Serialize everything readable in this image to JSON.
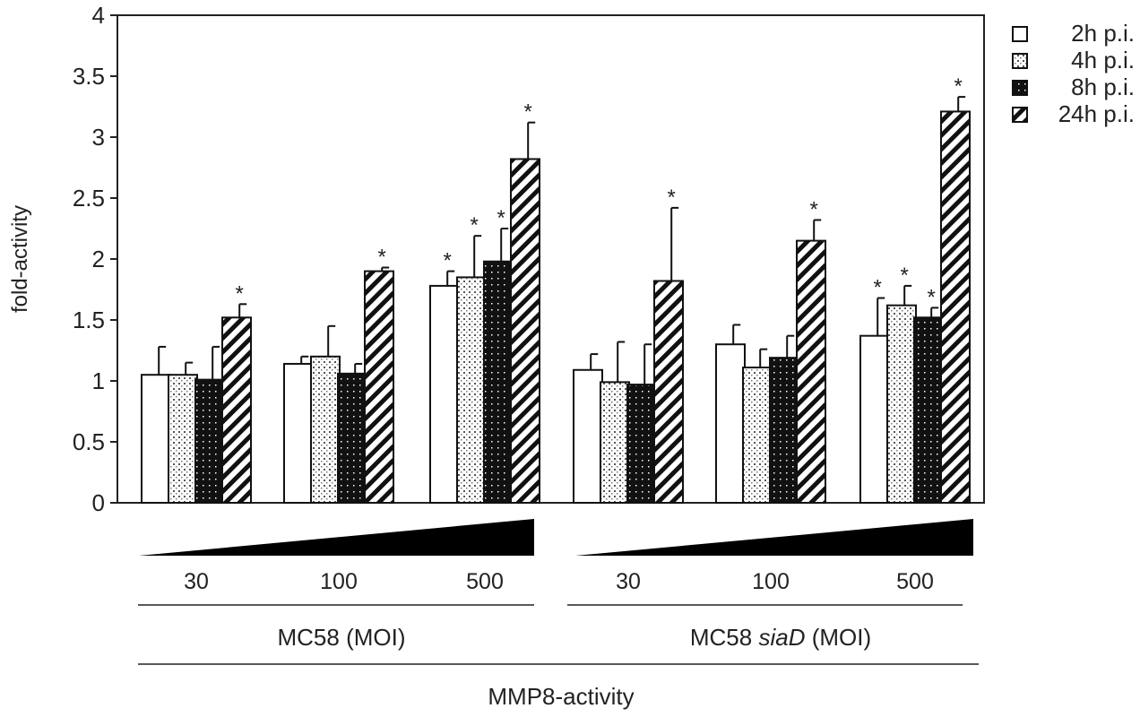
{
  "chart_data": {
    "type": "bar",
    "ylabel": "fold-activity",
    "xlabel": "MMP8-activity",
    "ylim": [
      0,
      4
    ],
    "yticks": [
      "0",
      "0.5",
      "1",
      "1.5",
      "2",
      "2.5",
      "3",
      "3.5",
      "4"
    ],
    "legend_position": "top-right",
    "groups": [
      {
        "label": "MC58 (MOI)",
        "label_pre": "MC58 ",
        "label_italic": "",
        "label_post": "(MOI)",
        "categories": [
          "30",
          "100",
          "500"
        ]
      },
      {
        "label": "MC58 siaD (MOI)",
        "label_pre": "MC58 ",
        "label_italic": "siaD",
        "label_post": " (MOI)",
        "categories": [
          "30",
          "100",
          "500"
        ]
      }
    ],
    "series": [
      {
        "name": "2h p.i.",
        "pattern": "open",
        "values": [
          1.05,
          1.14,
          1.78,
          1.09,
          1.3,
          1.37
        ],
        "errors": [
          0.23,
          0.06,
          0.12,
          0.13,
          0.16,
          0.31
        ],
        "significant": [
          false,
          false,
          true,
          false,
          false,
          true
        ]
      },
      {
        "name": "4h p.i.",
        "pattern": "light-dots",
        "values": [
          1.05,
          1.2,
          1.85,
          0.99,
          1.11,
          1.62
        ],
        "errors": [
          0.1,
          0.25,
          0.34,
          0.33,
          0.15,
          0.16
        ],
        "significant": [
          false,
          false,
          true,
          false,
          false,
          true
        ]
      },
      {
        "name": "8h p.i.",
        "pattern": "dark-dots",
        "values": [
          1.01,
          1.06,
          1.98,
          0.97,
          1.19,
          1.52
        ],
        "errors": [
          0.27,
          0.08,
          0.27,
          0.33,
          0.18,
          0.08
        ],
        "significant": [
          false,
          false,
          true,
          false,
          false,
          true
        ]
      },
      {
        "name": "24h p.i.",
        "pattern": "diagonal",
        "values": [
          1.52,
          1.9,
          2.82,
          1.82,
          2.15,
          3.21
        ],
        "errors": [
          0.11,
          0.03,
          0.3,
          0.6,
          0.17,
          0.12
        ],
        "significant": [
          true,
          true,
          true,
          true,
          true,
          true
        ]
      }
    ],
    "significance_marker": "*"
  }
}
